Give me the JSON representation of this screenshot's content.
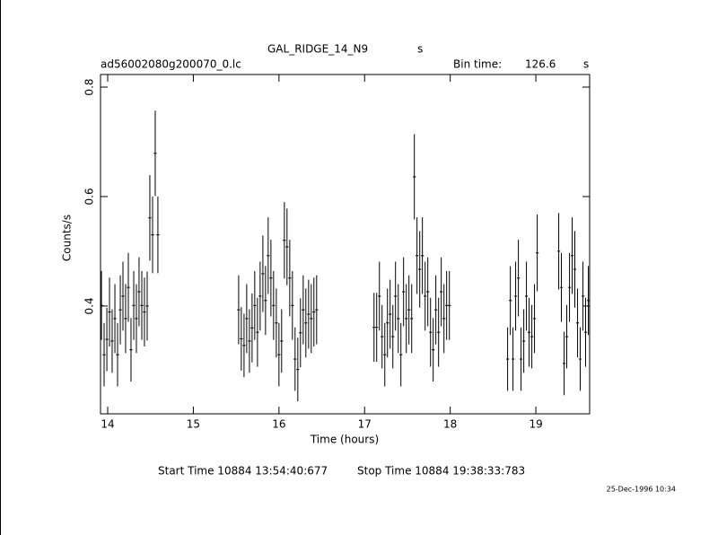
{
  "chart_data": {
    "type": "errorbar",
    "title": "GAL_RIDGE_14_N9",
    "title_unit": "s",
    "file_name": "ad56002080g200070_0.lc",
    "bin_time_label": "Bin time:",
    "bin_time": 126.6,
    "bin_time_unit": "s",
    "xlabel": "Time (hours)",
    "ylabel": "Counts/s",
    "start_time": "Start Time 10884 13:54:40:677",
    "stop_time": "Stop Time 10884 19:38:33:783",
    "date": "25-Dec-1996 10:34",
    "color": "#000000",
    "xlim": [
      13.916,
      19.628
    ],
    "ylim": [
      0.203,
      0.823
    ],
    "xticks": [
      14,
      15,
      16,
      17,
      18,
      19
    ],
    "yticks": [
      0.4,
      0.6,
      0.8
    ],
    "x": [
      13.927,
      13.958,
      13.99,
      14.021,
      14.052,
      14.084,
      14.115,
      14.147,
      14.178,
      14.209,
      14.241,
      14.272,
      14.304,
      14.335,
      14.366,
      14.398,
      14.429,
      14.461,
      14.492,
      14.524,
      14.555,
      14.586,
      15.529,
      15.56,
      15.592,
      15.623,
      15.655,
      15.686,
      15.717,
      15.749,
      15.78,
      15.812,
      15.843,
      15.874,
      15.906,
      15.937,
      15.969,
      16.0,
      16.031,
      16.063,
      16.094,
      16.126,
      16.157,
      16.188,
      16.22,
      16.251,
      16.283,
      16.314,
      16.346,
      16.377,
      16.408,
      16.44,
      17.11,
      17.141,
      17.173,
      17.204,
      17.236,
      17.267,
      17.298,
      17.33,
      17.361,
      17.393,
      17.424,
      17.455,
      17.487,
      17.518,
      17.55,
      17.581,
      17.612,
      17.644,
      17.675,
      17.707,
      17.738,
      17.77,
      17.801,
      17.832,
      17.864,
      17.895,
      17.927,
      17.958,
      17.99,
      18.67,
      18.702,
      18.733,
      18.764,
      18.796,
      18.827,
      18.859,
      18.89,
      18.921,
      18.953,
      18.984,
      19.016,
      19.267,
      19.298,
      19.33,
      19.361,
      19.393,
      19.424,
      19.455,
      19.487,
      19.518,
      19.55,
      19.581,
      19.613
    ],
    "values": [
      0.401,
      0.311,
      0.339,
      0.389,
      0.336,
      0.377,
      0.311,
      0.393,
      0.418,
      0.377,
      0.434,
      0.32,
      0.401,
      0.377,
      0.426,
      0.401,
      0.389,
      0.4,
      0.561,
      0.53,
      0.679,
      0.53,
      0.393,
      0.34,
      0.328,
      0.377,
      0.336,
      0.36,
      0.401,
      0.352,
      0.418,
      0.459,
      0.41,
      0.492,
      0.451,
      0.401,
      0.369,
      0.311,
      0.336,
      0.52,
      0.508,
      0.451,
      0.401,
      0.303,
      0.284,
      0.351,
      0.393,
      0.369,
      0.385,
      0.377,
      0.389,
      0.393,
      0.361,
      0.361,
      0.418,
      0.344,
      0.311,
      0.369,
      0.385,
      0.344,
      0.418,
      0.377,
      0.311,
      0.426,
      0.377,
      0.393,
      0.377,
      0.636,
      0.492,
      0.467,
      0.492,
      0.418,
      0.426,
      0.352,
      0.32,
      0.393,
      0.352,
      0.426,
      0.377,
      0.401,
      0.401,
      0.303,
      0.41,
      0.303,
      0.418,
      0.451,
      0.303,
      0.336,
      0.418,
      0.352,
      0.344,
      0.377,
      0.497,
      0.5,
      0.434,
      0.295,
      0.344,
      0.434,
      0.492,
      0.467,
      0.369,
      0.303,
      0.418,
      0.352,
      0.41
    ],
    "errors": [
      0.063,
      0.058,
      0.058,
      0.063,
      0.058,
      0.063,
      0.058,
      0.063,
      0.063,
      0.063,
      0.063,
      0.058,
      0.063,
      0.063,
      0.063,
      0.063,
      0.063,
      0.063,
      0.078,
      0.07,
      0.078,
      0.07,
      0.063,
      0.058,
      0.058,
      0.063,
      0.058,
      0.063,
      0.063,
      0.063,
      0.063,
      0.07,
      0.063,
      0.07,
      0.07,
      0.063,
      0.063,
      0.058,
      0.058,
      0.07,
      0.07,
      0.07,
      0.063,
      0.058,
      0.058,
      0.063,
      0.063,
      0.063,
      0.063,
      0.063,
      0.063,
      0.063,
      0.063,
      0.063,
      0.063,
      0.058,
      0.058,
      0.063,
      0.063,
      0.058,
      0.063,
      0.063,
      0.058,
      0.063,
      0.063,
      0.063,
      0.063,
      0.078,
      0.07,
      0.07,
      0.07,
      0.063,
      0.063,
      0.063,
      0.058,
      0.063,
      0.063,
      0.063,
      0.063,
      0.063,
      0.063,
      0.058,
      0.063,
      0.058,
      0.063,
      0.07,
      0.058,
      0.058,
      0.063,
      0.063,
      0.058,
      0.063,
      0.07,
      0.07,
      0.063,
      0.058,
      0.058,
      0.063,
      0.07,
      0.07,
      0.063,
      0.058,
      0.063,
      0.063,
      0.063
    ]
  }
}
